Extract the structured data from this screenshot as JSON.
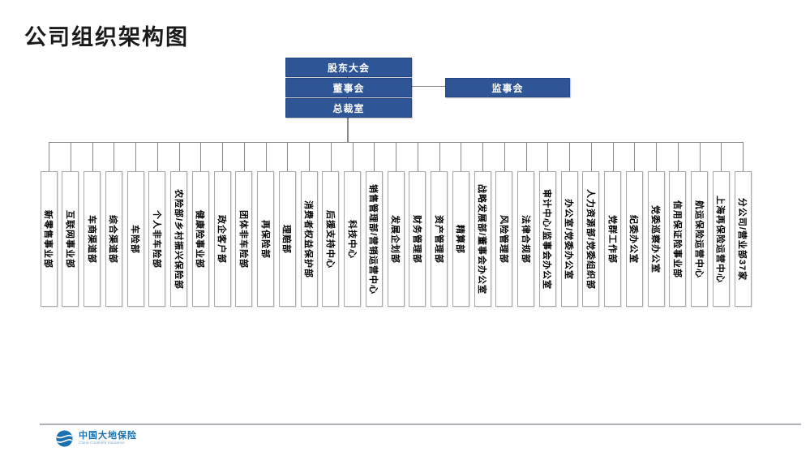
{
  "title": "公司组织架构图",
  "org": {
    "top_nodes": [
      {
        "id": "shareholders-meeting",
        "label": "股东大会"
      },
      {
        "id": "board-of-directors",
        "label": "董事会"
      },
      {
        "id": "president-office",
        "label": "总裁室"
      },
      {
        "id": "supervisory-board",
        "label": "监事会"
      }
    ],
    "departments": [
      "新零售事业部",
      "互联网事业部",
      "车商渠道部",
      "综合渠道部",
      "车险部",
      "个人非车险部",
      "农险部/乡村振兴保险部",
      "健康险事业部",
      "政企客户部",
      "团体非车险部",
      "再保险部",
      "理赔部",
      "消费者权益保护部",
      "后援支持中心",
      "科技中心",
      "销售管理部/营销运营中心",
      "发展企划部",
      "财务管理部",
      "资产管理部",
      "精算部",
      "战略发展部/董事会办公室",
      "风险管理部",
      "法律合规部",
      "审计中心/监事会办公室",
      "办公室/党委办公室",
      "人力资源部/党委组织部",
      "党群工作部",
      "纪委办公室",
      "党委巡察办公室",
      "信用保证险事业部",
      "航运保险运营中心",
      "上海再保险运营中心",
      "分公司/营业部37家"
    ]
  },
  "footer": {
    "logo_text": "中国大地保险",
    "logo_subtext": "China Continent Insurance"
  },
  "colors": {
    "node_fill": "#2E5596",
    "node_border": "#24457F",
    "node_text": "#FFFFFF",
    "connector": "#8A8A8A",
    "dept_border": "#A8A8A8",
    "divider": "#AEB2B8",
    "logo_blue": "#1A6FAE",
    "logo_subtext_blue": "#7AA9CC",
    "title_color": "#1A1A1A"
  }
}
